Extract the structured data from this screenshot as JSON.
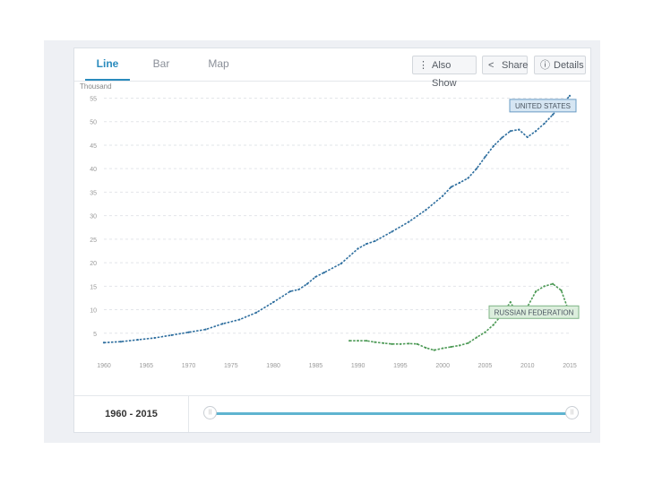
{
  "tabs": [
    {
      "label": "Line",
      "active": true
    },
    {
      "label": "Bar",
      "active": false
    },
    {
      "label": "Map",
      "active": false
    }
  ],
  "toolbar": {
    "also_show": {
      "label": "Also Show",
      "icon": "list-icon"
    },
    "share": {
      "label": "Share",
      "icon": "share-icon"
    },
    "details": {
      "label": "Details",
      "icon": "info-icon"
    }
  },
  "footer": {
    "range_label": "1960 - 2015"
  },
  "colors": {
    "accent": "#2a8bbd",
    "us_series": "#2f6f9f",
    "ru_series": "#4d9a56",
    "slider": "#5fb4d0"
  },
  "chart_data": {
    "type": "line",
    "ylabel": "Thousand",
    "ylim": [
      0,
      57
    ],
    "xlim": [
      1960,
      2015
    ],
    "y_ticks": [
      5,
      10,
      15,
      20,
      25,
      30,
      35,
      40,
      45,
      50,
      55
    ],
    "x_ticks": [
      1960,
      1965,
      1970,
      1975,
      1980,
      1985,
      1990,
      1995,
      2000,
      2005,
      2010,
      2015
    ],
    "grid": true,
    "series": [
      {
        "name": "UNITED STATES",
        "color": "#2f6f9f",
        "points": [
          [
            1960,
            3.0
          ],
          [
            1962,
            3.2
          ],
          [
            1964,
            3.6
          ],
          [
            1966,
            4.0
          ],
          [
            1968,
            4.6
          ],
          [
            1970,
            5.2
          ],
          [
            1972,
            5.8
          ],
          [
            1974,
            7.0
          ],
          [
            1976,
            7.9
          ],
          [
            1978,
            9.4
          ],
          [
            1980,
            11.6
          ],
          [
            1982,
            13.9
          ],
          [
            1983,
            14.3
          ],
          [
            1984,
            15.5
          ],
          [
            1985,
            17.0
          ],
          [
            1986,
            17.9
          ],
          [
            1988,
            19.8
          ],
          [
            1990,
            23.0
          ],
          [
            1991,
            24.0
          ],
          [
            1992,
            24.6
          ],
          [
            1994,
            26.6
          ],
          [
            1996,
            28.7
          ],
          [
            1998,
            31.2
          ],
          [
            2000,
            34.2
          ],
          [
            2001,
            36.1
          ],
          [
            2002,
            37.0
          ],
          [
            2003,
            38.0
          ],
          [
            2004,
            40.0
          ],
          [
            2005,
            42.5
          ],
          [
            2006,
            44.8
          ],
          [
            2007,
            46.6
          ],
          [
            2008,
            48.0
          ],
          [
            2009,
            48.3
          ],
          [
            2010,
            46.7
          ],
          [
            2011,
            48.0
          ],
          [
            2012,
            49.6
          ],
          [
            2013,
            51.5
          ],
          [
            2014,
            53.5
          ],
          [
            2015,
            55.5
          ]
        ]
      },
      {
        "name": "RUSSIAN FEDERATION",
        "color": "#4d9a56",
        "points": [
          [
            1989,
            3.4
          ],
          [
            1990,
            3.4
          ],
          [
            1991,
            3.4
          ],
          [
            1992,
            3.1
          ],
          [
            1993,
            2.9
          ],
          [
            1994,
            2.7
          ],
          [
            1995,
            2.7
          ],
          [
            1996,
            2.8
          ],
          [
            1997,
            2.7
          ],
          [
            1998,
            1.9
          ],
          [
            1999,
            1.4
          ],
          [
            2000,
            1.8
          ],
          [
            2001,
            2.1
          ],
          [
            2002,
            2.4
          ],
          [
            2003,
            2.9
          ],
          [
            2004,
            4.1
          ],
          [
            2005,
            5.2
          ],
          [
            2006,
            6.8
          ],
          [
            2007,
            9.0
          ],
          [
            2008,
            11.6
          ],
          [
            2009,
            8.5
          ],
          [
            2010,
            10.6
          ],
          [
            2011,
            13.9
          ],
          [
            2012,
            15.0
          ],
          [
            2013,
            15.5
          ],
          [
            2014,
            14.1
          ],
          [
            2015,
            9.1
          ]
        ]
      }
    ]
  }
}
